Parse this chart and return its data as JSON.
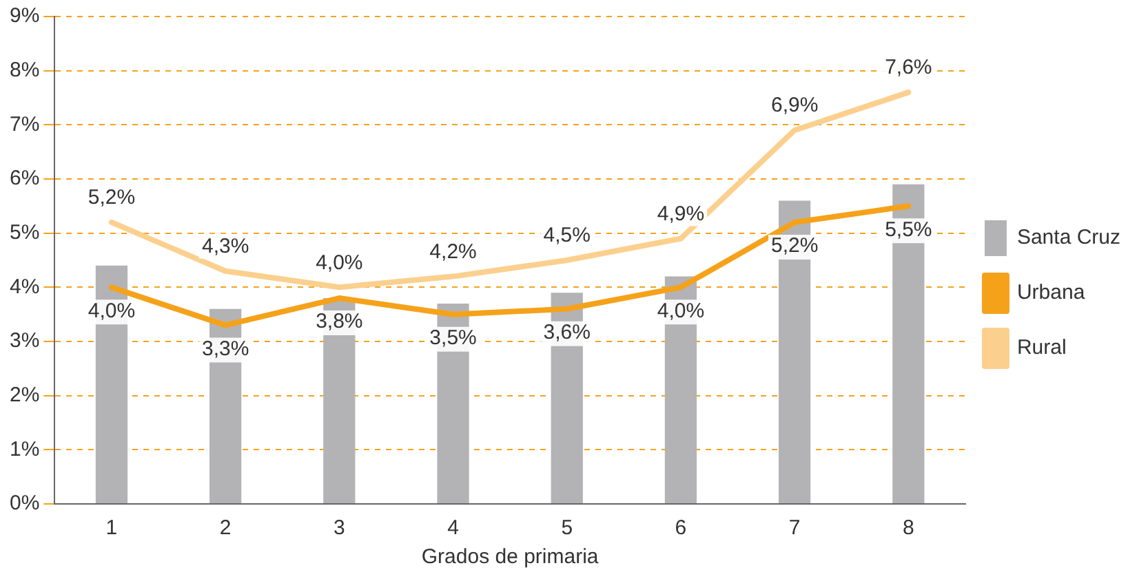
{
  "chart_data": {
    "type": "bar",
    "xlabel": "Grados de primaria",
    "categories": [
      "1",
      "2",
      "3",
      "4",
      "5",
      "6",
      "7",
      "8"
    ],
    "series": [
      {
        "name": "Santa Cruz",
        "color": "#b3b3b5",
        "values": [
          4.4,
          3.6,
          3.8,
          3.7,
          3.9,
          4.2,
          5.6,
          5.9
        ]
      },
      {
        "name": "Urbana",
        "type": "line",
        "color": "#f5a21b",
        "values": [
          4.0,
          3.3,
          3.8,
          3.5,
          3.6,
          4.0,
          5.2,
          5.5
        ],
        "value_labels": [
          "4,0%",
          "3,3%",
          "3,8%",
          "3,5%",
          "3,6%",
          "4,0%",
          "5,2%",
          "5,5%"
        ]
      },
      {
        "name": "Rural",
        "type": "line",
        "color": "#fbd08e",
        "values": [
          5.2,
          4.3,
          4.0,
          4.2,
          4.5,
          4.9,
          6.9,
          7.6
        ],
        "value_labels": [
          "5,2%",
          "4,3%",
          "4,0%",
          "4,2%",
          "4,5%",
          "4,9%",
          "6,9%",
          "7,6%"
        ]
      }
    ],
    "ylim": [
      0,
      9
    ],
    "yticks": [
      {
        "value": 0,
        "label": "0%"
      },
      {
        "value": 1,
        "label": "1%"
      },
      {
        "value": 2,
        "label": "2%"
      },
      {
        "value": 3,
        "label": "3%"
      },
      {
        "value": 4,
        "label": "4%"
      },
      {
        "value": 5,
        "label": "5%"
      },
      {
        "value": 6,
        "label": "6%"
      },
      {
        "value": 7,
        "label": "7%"
      },
      {
        "value": 8,
        "label": "8%"
      },
      {
        "value": 9,
        "label": "9%"
      }
    ],
    "grid": "y",
    "legend": "right",
    "marker": "none",
    "line_style": "solid"
  }
}
